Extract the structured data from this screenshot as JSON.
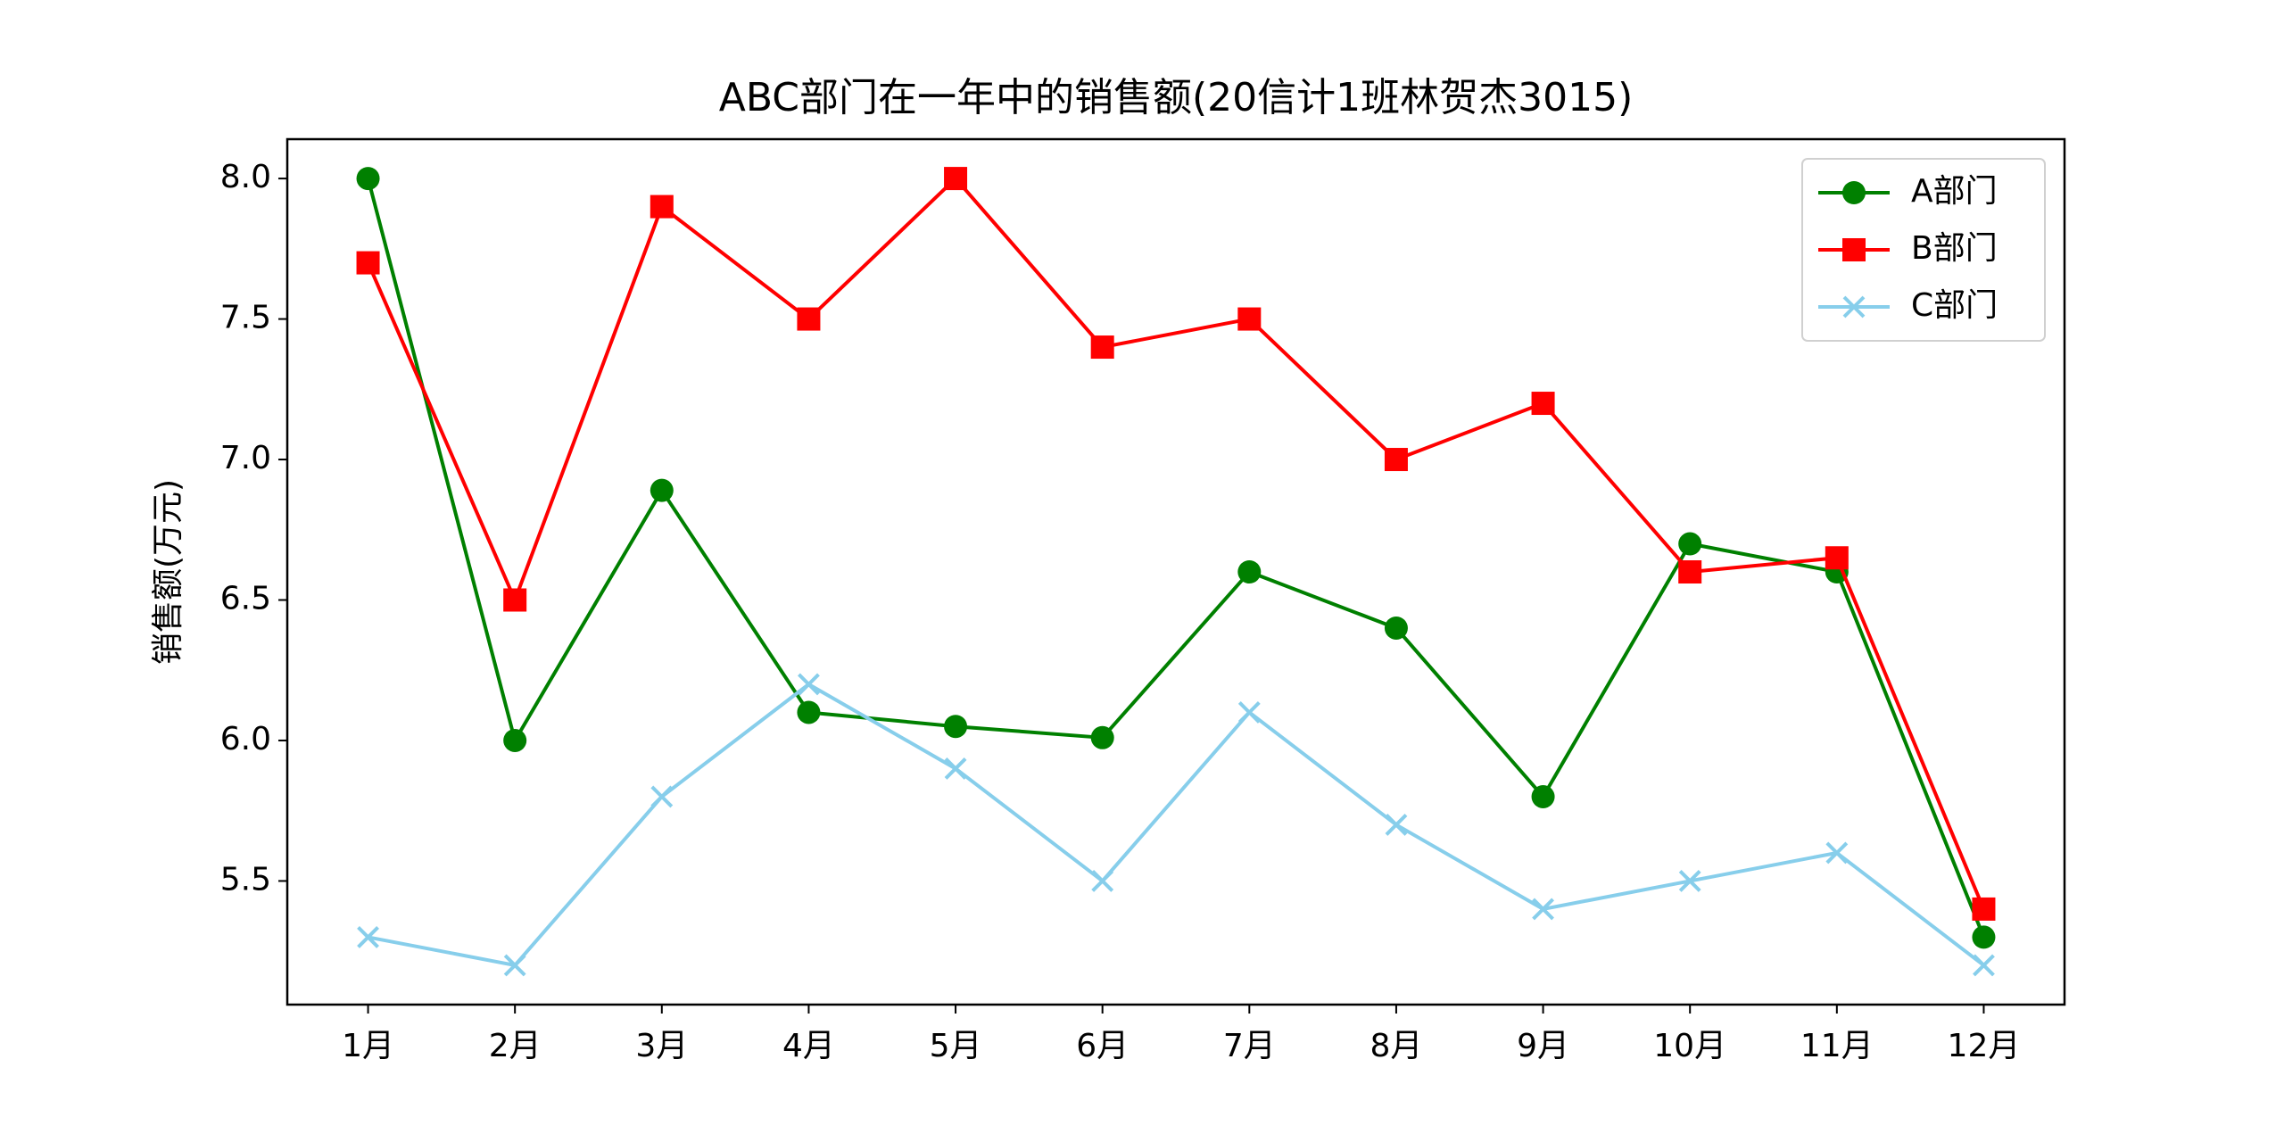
{
  "chart_data": {
    "type": "line",
    "title": "ABC部门在一年中的销售额(20信计1班林贺杰3015)",
    "y_label": "销售额(万元)",
    "categories": [
      "1月",
      "2月",
      "3月",
      "4月",
      "5月",
      "6月",
      "7月",
      "8月",
      "9月",
      "10月",
      "11月",
      "12月"
    ],
    "series": [
      {
        "name": "A部门",
        "color": "#008000",
        "marker": "circle",
        "values": [
          8.0,
          6.0,
          6.89,
          6.1,
          6.05,
          6.01,
          6.6,
          6.4,
          5.8,
          6.7,
          6.6,
          5.3
        ]
      },
      {
        "name": "B部门",
        "color": "#ff0000",
        "marker": "square",
        "values": [
          7.7,
          6.5,
          7.9,
          7.5,
          8.0,
          7.4,
          7.5,
          7.0,
          7.2,
          6.6,
          6.65,
          5.4
        ]
      },
      {
        "name": "C部门",
        "color": "#87ceeb",
        "marker": "x",
        "values": [
          5.3,
          5.2,
          5.8,
          6.2,
          5.9,
          5.5,
          6.1,
          5.7,
          5.4,
          5.5,
          5.6,
          5.2
        ]
      }
    ],
    "ylim": [
      5.06,
      8.14
    ],
    "yticks": [
      5.5,
      {
        "value": 6,
        "label": "6.0"
      },
      6.5,
      {
        "value": 7,
        "label": "7.0"
      },
      7.5,
      {
        "value": 8,
        "label": "8.0"
      }
    ],
    "grid": false,
    "legend": "upper right"
  }
}
